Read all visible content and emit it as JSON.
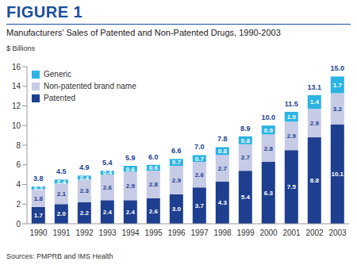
{
  "chart_data": {
    "type": "bar",
    "title": "FIGURE 1",
    "subtitle": "Manufacturers' Sales of Patented and Non-Patented Drugs, 1990-2003",
    "y_label": "$ Billions",
    "note": "Sources: PMPRB and IMS Health",
    "categories": [
      "1990",
      "1991",
      "1992",
      "1993",
      "1994",
      "1995",
      "1996",
      "1997",
      "1998",
      "1999",
      "2000",
      "2001",
      "2002",
      "2003"
    ],
    "series": [
      {
        "name": "Patented",
        "color": "#1e3f8f",
        "values": [
          1.7,
          2.0,
          2.2,
          2.4,
          2.4,
          2.6,
          3.0,
          3.7,
          4.3,
          5.4,
          6.3,
          7.5,
          8.8,
          10.1
        ],
        "value_labels": [
          "1.7",
          "2.0",
          "2.2",
          "2.4",
          "2.4",
          "2.6",
          "3.0",
          "3.7",
          "4.3",
          "5.4",
          "6.3",
          "7.5",
          "8.8",
          "10.1"
        ]
      },
      {
        "name": "Non-patented brand name",
        "color": "#c6cbe6",
        "values": [
          1.8,
          2.1,
          2.3,
          2.6,
          2.9,
          2.8,
          2.9,
          2.6,
          2.7,
          2.7,
          2.8,
          2.9,
          2.9,
          3.2
        ],
        "value_labels": [
          "1.8",
          "2.1",
          "2.3",
          "2.6",
          "2.9",
          "2.8",
          "2.9",
          "2.6",
          "2.7",
          "2.7",
          "2.8",
          "2.9",
          "2.9",
          "3.2"
        ]
      },
      {
        "name": "Generic",
        "color": "#2bb3e3",
        "values": [
          0.3,
          0.4,
          0.4,
          0.4,
          0.6,
          0.6,
          0.7,
          0.7,
          0.8,
          0.8,
          0.9,
          1.0,
          1.4,
          1.7
        ],
        "value_labels": [
          "0.3",
          "0.4",
          "0.4",
          "0.4",
          "0.6",
          "0.6",
          "0.7",
          "0.7",
          "0.8",
          "0.8",
          "0.9",
          "1.0",
          "1.4",
          "1.7"
        ]
      }
    ],
    "totals": [
      3.8,
      4.5,
      4.9,
      5.4,
      5.9,
      6.0,
      6.6,
      7.0,
      7.8,
      8.9,
      10.0,
      11.5,
      13.1,
      15.0
    ],
    "total_labels": [
      "3.8",
      "4.5",
      "4.9",
      "5.4",
      "5.9",
      "6.0",
      "6.6",
      "7.0",
      "7.8",
      "8.9",
      "10.0",
      "11.5",
      "13.1",
      "15.0"
    ],
    "ylim": [
      0,
      16
    ],
    "yticks": [
      0,
      2,
      4,
      6,
      8,
      10,
      12,
      14,
      16
    ],
    "stacked": true,
    "data_labels": true,
    "grid": false,
    "legend": "top-left"
  }
}
